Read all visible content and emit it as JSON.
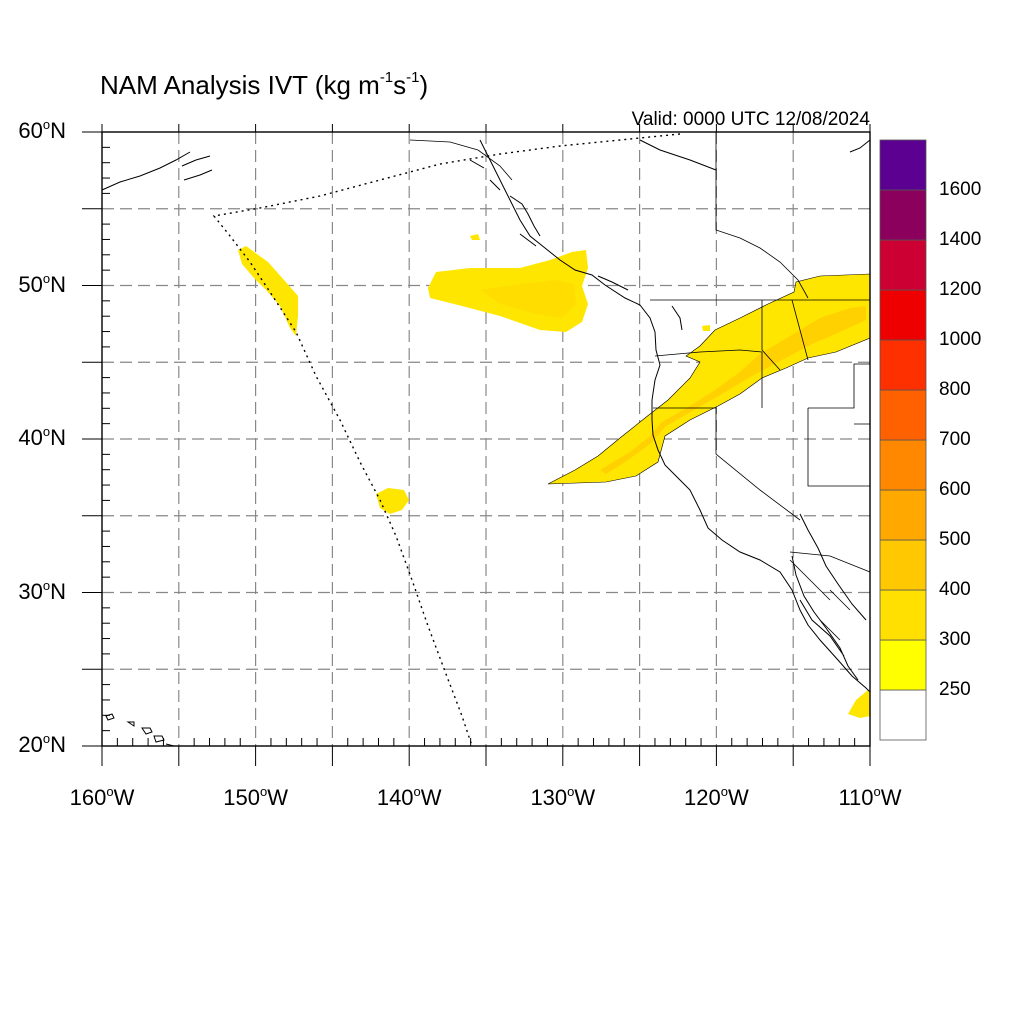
{
  "title": {
    "prefix": "NAM Analysis IVT (kg m",
    "exp1": "-1",
    "mid": "s",
    "exp2": "-1",
    "suffix": ")"
  },
  "valid_text": "Valid: 0000 UTC 12/08/2024",
  "degree_symbol": "o",
  "lat_axis": {
    "labels": [
      {
        "value": "60",
        "hemi": "N"
      },
      {
        "value": "50",
        "hemi": "N"
      },
      {
        "value": "40",
        "hemi": "N"
      },
      {
        "value": "30",
        "hemi": "N"
      },
      {
        "value": "20",
        "hemi": "N"
      }
    ]
  },
  "lon_axis": {
    "labels": [
      {
        "value": "160",
        "hemi": "W"
      },
      {
        "value": "150",
        "hemi": "W"
      },
      {
        "value": "140",
        "hemi": "W"
      },
      {
        "value": "130",
        "hemi": "W"
      },
      {
        "value": "120",
        "hemi": "W"
      },
      {
        "value": "110",
        "hemi": "W"
      }
    ]
  },
  "map_extent": {
    "lon_min": -160,
    "lon_max": -110,
    "lat_min": 20,
    "lat_max": 60
  },
  "gridlines": {
    "lon_step_deg": 5,
    "lat_step_deg": 5,
    "style": "dashed",
    "color": "#888888"
  },
  "colorbar": {
    "labels": [
      "1600",
      "1400",
      "1200",
      "1000",
      "800",
      "700",
      "600",
      "500",
      "400",
      "300",
      "250"
    ],
    "colors": [
      "#ffffff",
      "#ffff00",
      "#ffe000",
      "#ffc800",
      "#ffa800",
      "#ff8800",
      "#ff6000",
      "#ff3000",
      "#ee0000",
      "#cc0033",
      "#8a005c",
      "#5b0090"
    ]
  },
  "ivt_features": [
    {
      "name": "atmospheric-river-main",
      "level": "250-300",
      "core_level": "300-400",
      "color": "#ffe600",
      "core_color": "#ffcc00"
    },
    {
      "name": "offshore-plume-50n",
      "level": "250-300",
      "color": "#ffe600"
    },
    {
      "name": "gulf-of-alaska-streak",
      "level": "250-300",
      "color": "#ffe600"
    },
    {
      "name": "small-blob-36n",
      "level": "250-300",
      "color": "#ffe600"
    },
    {
      "name": "mexico-corner-blob",
      "level": "250-300",
      "color": "#ffe600"
    }
  ]
}
